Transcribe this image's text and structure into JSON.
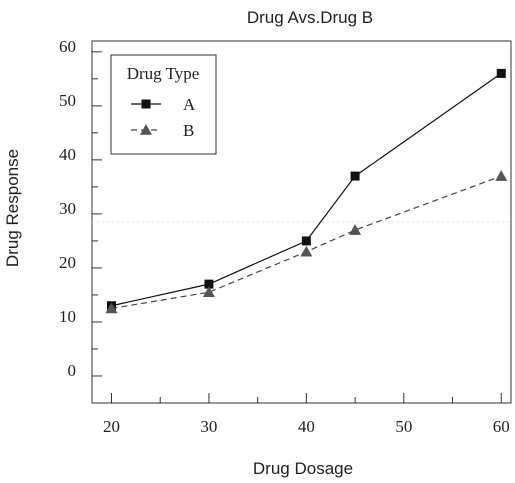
{
  "chart_data": {
    "type": "line",
    "title": "Drug Avs.Drug B",
    "xlabel": "Drug Dosage",
    "ylabel": "Drug Response",
    "x": [
      20,
      30,
      40,
      45,
      60
    ],
    "x_ticks": [
      "20",
      "30",
      "40",
      "50",
      "60"
    ],
    "y_ticks": [
      "0",
      "10",
      "20",
      "30",
      "40",
      "50",
      "60"
    ],
    "xlim": [
      18,
      61
    ],
    "ylim": [
      -5,
      62
    ],
    "legend": {
      "title": "Drug Type",
      "position": "top-left"
    },
    "series": [
      {
        "name": "A",
        "values": [
          13,
          17,
          25,
          37,
          56
        ],
        "marker": "square",
        "line": "solid",
        "color": "#111111"
      },
      {
        "name": "B",
        "values": [
          12.5,
          15.5,
          23,
          27,
          37
        ],
        "marker": "triangle",
        "line": "dashed",
        "color": "#555555"
      }
    ],
    "grid": false,
    "reference_line": {
      "y": 28.5,
      "style": "dotted",
      "color": "#dddddd"
    }
  }
}
